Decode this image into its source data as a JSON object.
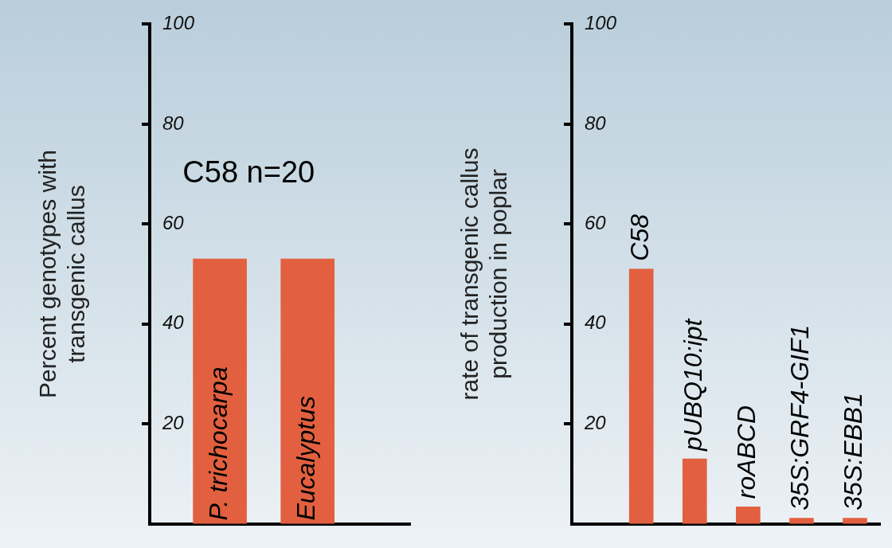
{
  "chart_data": [
    {
      "type": "bar",
      "ylabel": "Percent genotypes with\ntransgenic callus",
      "categories": [
        "P. trichocarpa",
        "Eucalyptus"
      ],
      "values": [
        53,
        53
      ],
      "color": "#e2603f",
      "ylim": [
        0,
        100
      ],
      "yticks": [
        20,
        40,
        60,
        80,
        100
      ],
      "grid": false,
      "annotations": [
        "C58 n=20"
      ]
    },
    {
      "type": "bar",
      "ylabel": "rate of transgenic callus\nproduction in poplar",
      "categories": [
        "C58",
        "pUBQ10:ipt",
        "roABCD",
        "35S:GRF4-GIF1",
        "35S:EBB1"
      ],
      "values": [
        51,
        13,
        3.4,
        1.1,
        1.1
      ],
      "color": "#e2603f",
      "ylim": [
        0,
        100
      ],
      "yticks": [
        20,
        40,
        60,
        80,
        100
      ],
      "grid": false
    }
  ]
}
